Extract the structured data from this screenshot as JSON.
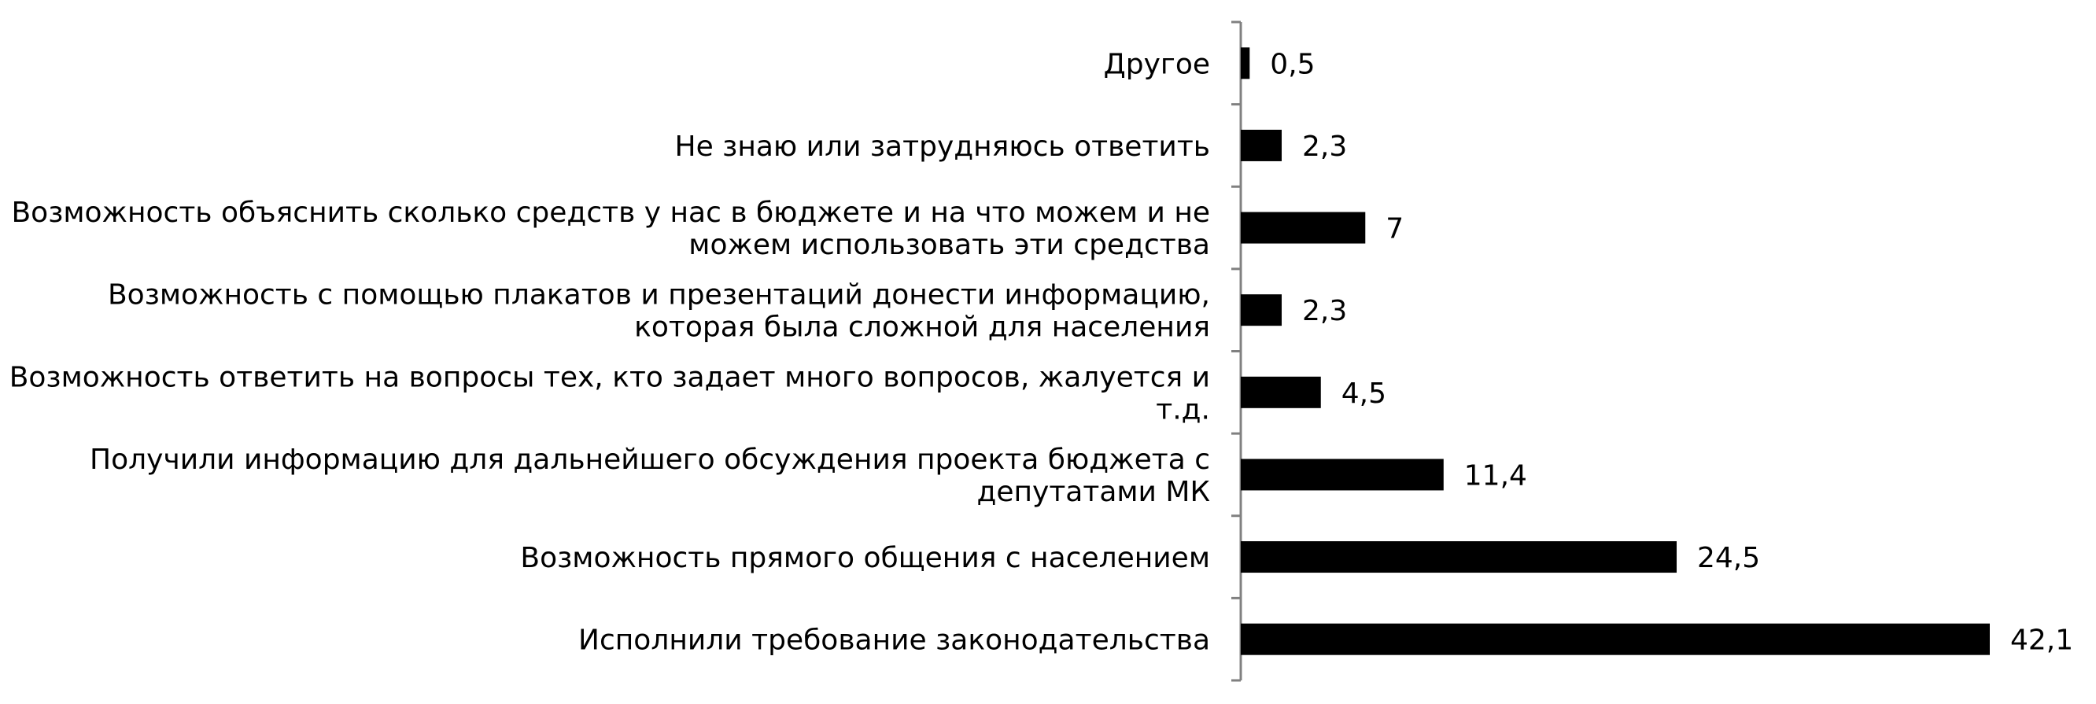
{
  "chart_data": {
    "type": "bar",
    "orientation": "horizontal",
    "title": "",
    "xlabel": "",
    "ylabel": "",
    "xlim": [
      0,
      42.1
    ],
    "grid": false,
    "legend": "none",
    "bar_color": "#000000",
    "axis_color": "#808080",
    "categories": [
      "Другое",
      "Не знаю или затрудняюсь ответить",
      "Возможность объяснить сколько средств у нас в бюджете и на что можем и не можем использовать эти средства",
      "Возможность с помощью плакатов и презентаций донести информацию, которая была сложной для населения",
      "Возможность ответить на вопросы тех, кто задает много вопросов, жалуется и т.д.",
      "Получили информацию для дальнейшего обсуждения проекта бюджета с депутатами МК",
      "Возможность прямого общения с населением",
      "Исполнили требование законодательства"
    ],
    "category_lines": [
      [
        "Другое"
      ],
      [
        "Не знаю или затрудняюсь ответить"
      ],
      [
        "Возможность объяснить сколько средств у нас в бюджете и на что можем и не",
        "можем использовать эти средства"
      ],
      [
        "Возможность с помощью плакатов и презентаций донести информацию,",
        "которая была сложной для населения"
      ],
      [
        "Возможность ответить на вопросы тех, кто задает много вопросов, жалуется и",
        "т.д."
      ],
      [
        "Получили информацию для дальнейшего обсуждения проекта бюджета с",
        "депутатами МК"
      ],
      [
        "Возможность прямого общения с населением"
      ],
      [
        "Исполнили требование законодательства"
      ]
    ],
    "values": [
      0.5,
      2.3,
      7,
      2.3,
      4.5,
      11.4,
      24.5,
      42.1
    ],
    "value_labels": [
      "0,5",
      "2,3",
      "7",
      "2,3",
      "4,5",
      "11,4",
      "24,5",
      "42,1"
    ]
  }
}
